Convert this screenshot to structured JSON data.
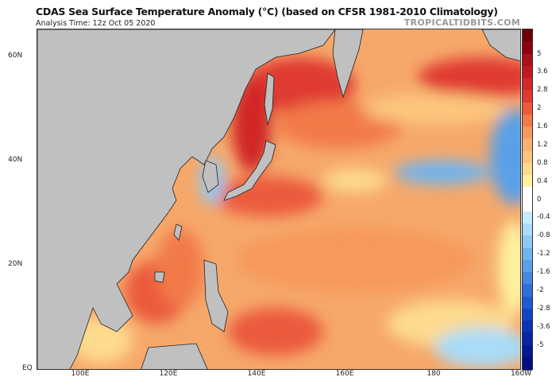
{
  "header": {
    "title": "CDAS Sea Surface Temperature Anomaly (°C) (based on CFSR 1981-2010 Climatology)",
    "analysis_time": "Analysis Time: 12z Oct 05 2020",
    "brand": "TROPICALTIDBITS.COM"
  },
  "map": {
    "lat_labels": [
      "60N",
      "40N",
      "20N",
      "EQ"
    ],
    "lon_labels": [
      "100E",
      "120E",
      "140E",
      "160E",
      "180",
      "160W"
    ],
    "land_color": "#c0c0c0",
    "base_ocean_color": "#f6a86a"
  },
  "colorbar": {
    "labels": [
      "5",
      "3.6",
      "2.8",
      "2",
      "1.6",
      "1.2",
      "0.8",
      "0.4",
      "0",
      "-0.4",
      "-0.8",
      "-1.2",
      "-1.6",
      "-2",
      "-2.8",
      "-3.6",
      "-5"
    ],
    "colors": [
      "#6b0008",
      "#8c0010",
      "#a8101a",
      "#c01820",
      "#d02828",
      "#e03a30",
      "#eb5a3c",
      "#f27a4a",
      "#f7985c",
      "#fab06e",
      "#fcc67e",
      "#fdda8e",
      "#fef2a0",
      "#ffffff",
      "#ffffff",
      "#c6ecfb",
      "#a8dcf8",
      "#8ccaf4",
      "#70b4ee",
      "#5aa0e8",
      "#4488e0",
      "#2e70d8",
      "#1e5ad0",
      "#1244c4",
      "#0a32b4",
      "#0624a4",
      "#031894",
      "#020e80"
    ]
  }
}
